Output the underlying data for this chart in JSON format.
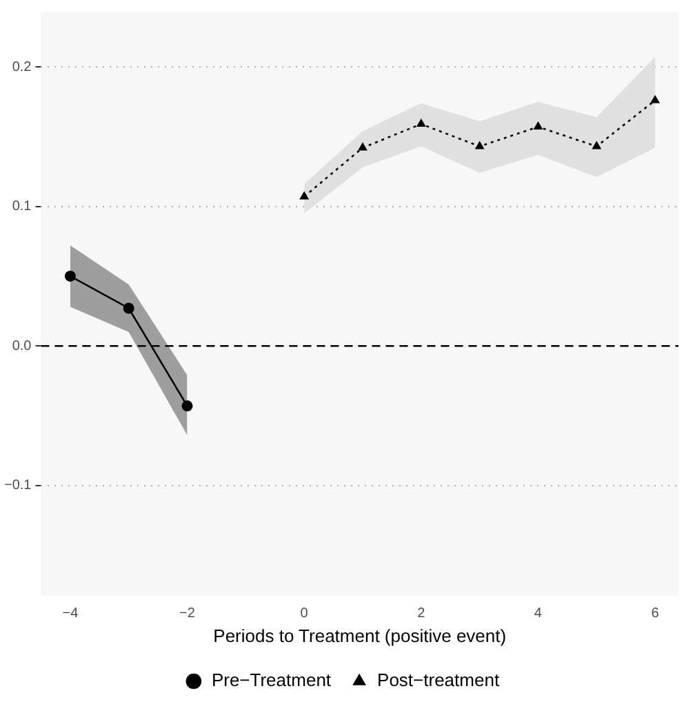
{
  "chart_data": {
    "type": "line",
    "xlabel": "Periods to Treatment (positive event)",
    "xlim": [
      -4.5,
      6.4
    ],
    "xticks": [
      -4,
      -2,
      0,
      2,
      4,
      6
    ],
    "ylim": [
      -0.179,
      0.239
    ],
    "yticks": [
      {
        "value": -0.1,
        "label": "−0.1"
      },
      {
        "value": 0,
        "label": "0.0"
      },
      {
        "value": 0.1,
        "label": "0.1"
      },
      {
        "value": 0.2,
        "label": "0.2"
      }
    ],
    "grid": "y",
    "legend": "bottom",
    "ref_lines": [
      {
        "axis": "y",
        "value": 0,
        "color": "#000000",
        "line_style": "dashed"
      }
    ],
    "series": [
      {
        "name": "Pre−Treatment",
        "color": "#000000",
        "marker": "circle",
        "line_style": "solid",
        "x": [
          -4,
          -3,
          -2
        ],
        "values": [
          0.05,
          0.027,
          -0.043
        ],
        "lower": [
          0.028,
          0.01,
          -0.064
        ],
        "upper": [
          0.072,
          0.044,
          -0.021
        ]
      },
      {
        "name": "Post−treatment",
        "color": "#000000",
        "marker": "triangle",
        "line_style": "dotted",
        "x": [
          0,
          1,
          2,
          3,
          4,
          5,
          6
        ],
        "values": [
          0.107,
          0.142,
          0.159,
          0.143,
          0.157,
          0.143,
          0.176
        ],
        "lower": [
          0.095,
          0.128,
          0.143,
          0.124,
          0.137,
          0.121,
          0.142
        ],
        "upper": [
          0.116,
          0.154,
          0.174,
          0.161,
          0.175,
          0.164,
          0.207
        ]
      }
    ]
  }
}
